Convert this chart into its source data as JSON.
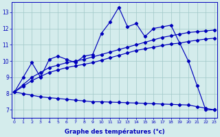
{
  "xlabel": "Graphe des températures (°c)",
  "bg_color": "#d4ecec",
  "line_color": "#0000bb",
  "grid_color": "#a0c8c8",
  "x_ticks": [
    0,
    1,
    2,
    3,
    4,
    5,
    6,
    7,
    8,
    9,
    10,
    11,
    12,
    13,
    14,
    15,
    16,
    17,
    18,
    19,
    20,
    21,
    22,
    23
  ],
  "y_ticks": [
    7,
    8,
    9,
    10,
    11,
    12,
    13
  ],
  "xlim": [
    -0.3,
    23.3
  ],
  "ylim": [
    6.5,
    13.6
  ],
  "series": {
    "temp": [
      8.1,
      9.0,
      9.9,
      9.0,
      10.1,
      10.3,
      10.1,
      9.9,
      10.3,
      10.4,
      11.7,
      12.4,
      13.3,
      12.1,
      12.3,
      11.5,
      12.0,
      12.1,
      12.2,
      11.1,
      10.0,
      8.5,
      7.0,
      7.0
    ],
    "avg_max": [
      8.1,
      8.55,
      9.0,
      9.3,
      9.6,
      9.75,
      9.9,
      10.0,
      10.1,
      10.25,
      10.4,
      10.55,
      10.7,
      10.85,
      11.0,
      11.15,
      11.3,
      11.45,
      11.55,
      11.65,
      11.75,
      11.8,
      11.85,
      11.9
    ],
    "avg": [
      8.1,
      8.45,
      8.8,
      9.05,
      9.3,
      9.45,
      9.6,
      9.7,
      9.8,
      9.9,
      10.05,
      10.2,
      10.35,
      10.5,
      10.65,
      10.75,
      10.85,
      10.95,
      11.05,
      11.1,
      11.2,
      11.28,
      11.35,
      11.4
    ],
    "avg_min": [
      8.1,
      8.0,
      7.9,
      7.8,
      7.75,
      7.7,
      7.65,
      7.6,
      7.55,
      7.5,
      7.5,
      7.48,
      7.46,
      7.44,
      7.42,
      7.4,
      7.38,
      7.36,
      7.34,
      7.32,
      7.3,
      7.2,
      7.1,
      7.0
    ]
  }
}
